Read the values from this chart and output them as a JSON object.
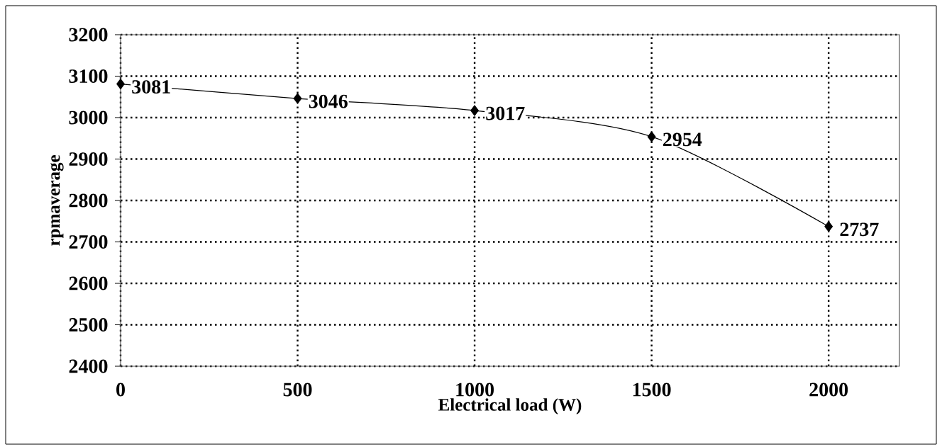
{
  "chart_data": {
    "type": "line",
    "xlabel": "Electrical load (W)",
    "ylabel": "rpmaverage",
    "x": [
      0,
      500,
      1000,
      1500,
      2000
    ],
    "series": [
      {
        "color": "#000000",
        "values": [
          3081,
          3046,
          3017,
          2954,
          2737
        ]
      }
    ],
    "xlim": [
      0,
      2200
    ],
    "ylim": [
      2400,
      3200
    ],
    "xticks": [
      0,
      500,
      1000,
      1500,
      2000
    ],
    "yticks": [
      2400,
      2500,
      2600,
      2700,
      2800,
      2900,
      3000,
      3100,
      3200
    ],
    "grid": true,
    "marker": "diamond",
    "line_style": "solid",
    "data_labels": true
  }
}
